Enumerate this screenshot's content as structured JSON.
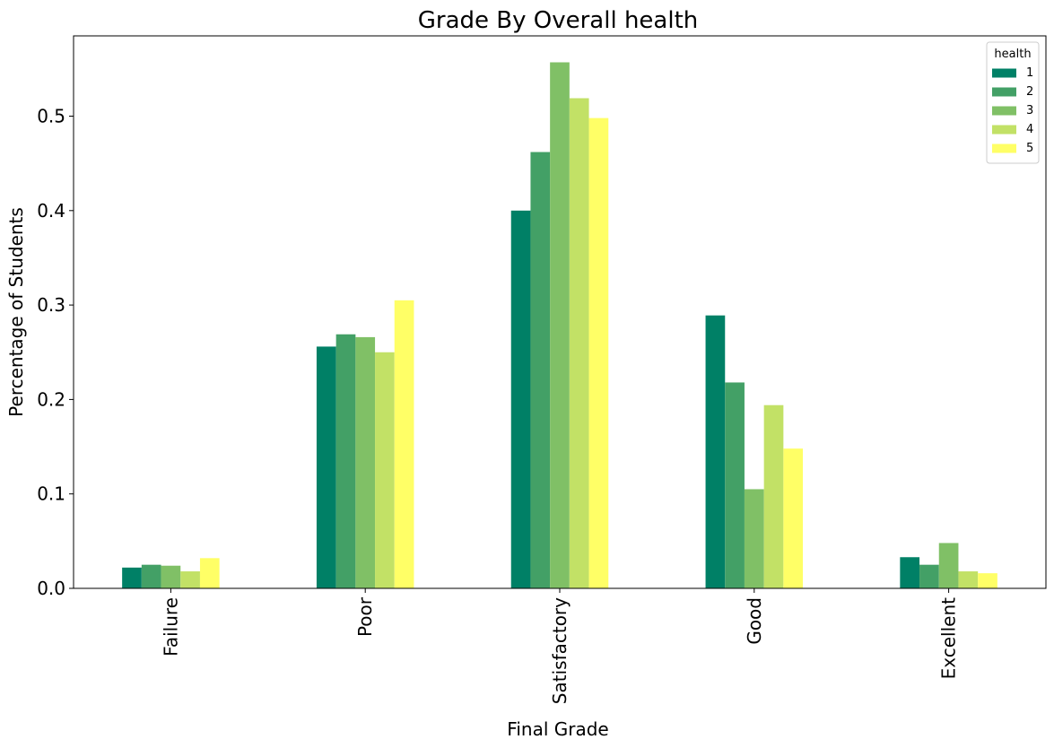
{
  "chart_data": {
    "type": "bar",
    "title": "Grade By Overall health",
    "xlabel": "Final Grade",
    "ylabel": "Percentage of Students",
    "categories": [
      "Failure",
      "Poor",
      "Satisfactory",
      "Good",
      "Excellent"
    ],
    "ylim": [
      0,
      0.585
    ],
    "yticks": [
      "0.0",
      "0.1",
      "0.2",
      "0.3",
      "0.4",
      "0.5"
    ],
    "ytick_values": [
      0.0,
      0.1,
      0.2,
      0.3,
      0.4,
      0.5
    ],
    "grid": false,
    "legend": {
      "title": "health",
      "placement": "top-right"
    },
    "series": [
      {
        "name": "1",
        "color": "#008066",
        "values": [
          0.022,
          0.256,
          0.4,
          0.289,
          0.033
        ]
      },
      {
        "name": "2",
        "color": "#43a066",
        "values": [
          0.025,
          0.269,
          0.462,
          0.218,
          0.025
        ]
      },
      {
        "name": "3",
        "color": "#80c066",
        "values": [
          0.024,
          0.266,
          0.557,
          0.105,
          0.048
        ]
      },
      {
        "name": "4",
        "color": "#c2e166",
        "values": [
          0.018,
          0.25,
          0.519,
          0.194,
          0.018
        ]
      },
      {
        "name": "5",
        "color": "#ffff66",
        "values": [
          0.032,
          0.305,
          0.498,
          0.148,
          0.016
        ]
      }
    ]
  }
}
